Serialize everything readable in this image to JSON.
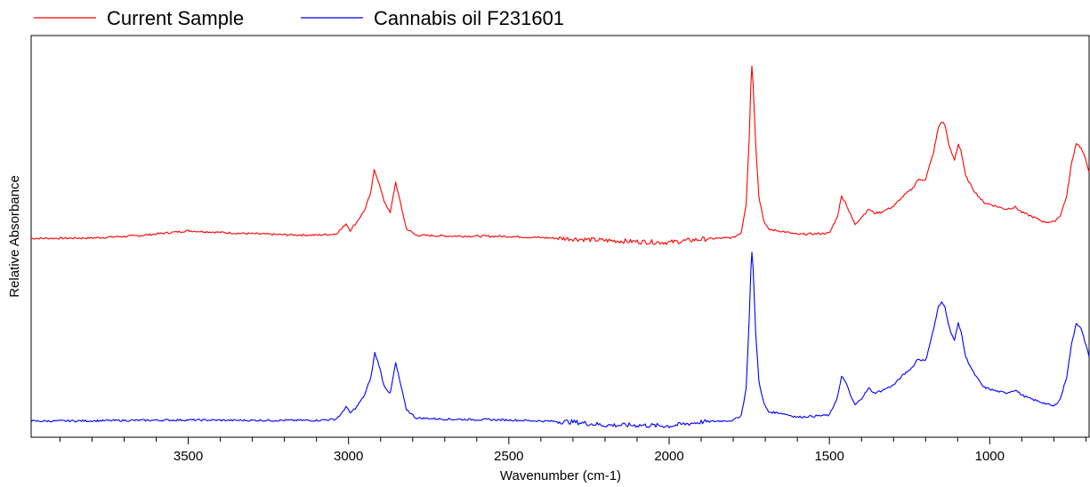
{
  "chart_data": {
    "type": "line",
    "title": "",
    "xlabel": "Wavenumber (cm-1)",
    "ylabel": "Relative Absorbance",
    "x_reversed": true,
    "xlim": [
      3990,
      690
    ],
    "ylim": [
      0,
      1
    ],
    "y_ticks_shown": false,
    "grid": false,
    "legend_position": "top-left, above plot",
    "x_ticks": [
      3500,
      3000,
      2500,
      2000,
      1500,
      1000
    ],
    "x_tick_labels": [
      "3500",
      "3000",
      "2500",
      "2000",
      "1500",
      "1000"
    ],
    "series": [
      {
        "name": "Current Sample",
        "color": "#ff0000",
        "points": [
          [
            3990,
            0.495
          ],
          [
            3800,
            0.496
          ],
          [
            3650,
            0.502
          ],
          [
            3500,
            0.514
          ],
          [
            3350,
            0.508
          ],
          [
            3200,
            0.504
          ],
          [
            3100,
            0.503
          ],
          [
            3040,
            0.506
          ],
          [
            3020,
            0.52
          ],
          [
            3008,
            0.532
          ],
          [
            2995,
            0.515
          ],
          [
            2975,
            0.535
          ],
          [
            2950,
            0.565
          ],
          [
            2930,
            0.61
          ],
          [
            2920,
            0.667
          ],
          [
            2908,
            0.64
          ],
          [
            2890,
            0.59
          ],
          [
            2870,
            0.558
          ],
          [
            2853,
            0.635
          ],
          [
            2840,
            0.59
          ],
          [
            2820,
            0.52
          ],
          [
            2790,
            0.503
          ],
          [
            2700,
            0.501
          ],
          [
            2500,
            0.5
          ],
          [
            2300,
            0.494
          ],
          [
            2200,
            0.49
          ],
          [
            2100,
            0.487
          ],
          [
            2000,
            0.485
          ],
          [
            1900,
            0.493
          ],
          [
            1800,
            0.497
          ],
          [
            1775,
            0.51
          ],
          [
            1760,
            0.58
          ],
          [
            1750,
            0.75
          ],
          [
            1745,
            0.88
          ],
          [
            1742,
            0.925
          ],
          [
            1738,
            0.88
          ],
          [
            1730,
            0.73
          ],
          [
            1720,
            0.6
          ],
          [
            1705,
            0.54
          ],
          [
            1690,
            0.517
          ],
          [
            1650,
            0.513
          ],
          [
            1600,
            0.505
          ],
          [
            1500,
            0.508
          ],
          [
            1475,
            0.55
          ],
          [
            1462,
            0.6
          ],
          [
            1450,
            0.585
          ],
          [
            1435,
            0.555
          ],
          [
            1420,
            0.53
          ],
          [
            1400,
            0.548
          ],
          [
            1377,
            0.568
          ],
          [
            1360,
            0.558
          ],
          [
            1340,
            0.56
          ],
          [
            1300,
            0.575
          ],
          [
            1270,
            0.6
          ],
          [
            1240,
            0.62
          ],
          [
            1225,
            0.64
          ],
          [
            1200,
            0.642
          ],
          [
            1175,
            0.71
          ],
          [
            1160,
            0.772
          ],
          [
            1150,
            0.786
          ],
          [
            1140,
            0.778
          ],
          [
            1125,
            0.72
          ],
          [
            1110,
            0.69
          ],
          [
            1098,
            0.73
          ],
          [
            1090,
            0.715
          ],
          [
            1075,
            0.65
          ],
          [
            1050,
            0.615
          ],
          [
            1020,
            0.585
          ],
          [
            980,
            0.575
          ],
          [
            950,
            0.568
          ],
          [
            920,
            0.573
          ],
          [
            900,
            0.56
          ],
          [
            870,
            0.55
          ],
          [
            830,
            0.536
          ],
          [
            800,
            0.536
          ],
          [
            780,
            0.552
          ],
          [
            760,
            0.6
          ],
          [
            745,
            0.68
          ],
          [
            730,
            0.733
          ],
          [
            715,
            0.72
          ],
          [
            700,
            0.69
          ],
          [
            690,
            0.66
          ]
        ]
      },
      {
        "name": "Cannabis oil F231601",
        "color": "#0000ff",
        "points": [
          [
            3990,
            0.04
          ],
          [
            3800,
            0.041
          ],
          [
            3650,
            0.042
          ],
          [
            3500,
            0.043
          ],
          [
            3350,
            0.042
          ],
          [
            3200,
            0.042
          ],
          [
            3100,
            0.042
          ],
          [
            3040,
            0.045
          ],
          [
            3020,
            0.06
          ],
          [
            3008,
            0.077
          ],
          [
            2995,
            0.06
          ],
          [
            2975,
            0.075
          ],
          [
            2950,
            0.105
          ],
          [
            2930,
            0.15
          ],
          [
            2918,
            0.21
          ],
          [
            2905,
            0.18
          ],
          [
            2890,
            0.13
          ],
          [
            2870,
            0.108
          ],
          [
            2853,
            0.185
          ],
          [
            2840,
            0.14
          ],
          [
            2820,
            0.07
          ],
          [
            2790,
            0.048
          ],
          [
            2700,
            0.045
          ],
          [
            2500,
            0.043
          ],
          [
            2300,
            0.038
          ],
          [
            2200,
            0.03
          ],
          [
            2100,
            0.03
          ],
          [
            2000,
            0.028
          ],
          [
            1900,
            0.038
          ],
          [
            1800,
            0.042
          ],
          [
            1775,
            0.055
          ],
          [
            1760,
            0.12
          ],
          [
            1750,
            0.3
          ],
          [
            1745,
            0.42
          ],
          [
            1742,
            0.46
          ],
          [
            1738,
            0.42
          ],
          [
            1730,
            0.26
          ],
          [
            1720,
            0.14
          ],
          [
            1705,
            0.085
          ],
          [
            1690,
            0.063
          ],
          [
            1650,
            0.06
          ],
          [
            1600,
            0.05
          ],
          [
            1500,
            0.055
          ],
          [
            1475,
            0.1
          ],
          [
            1462,
            0.15
          ],
          [
            1450,
            0.14
          ],
          [
            1435,
            0.105
          ],
          [
            1420,
            0.08
          ],
          [
            1400,
            0.097
          ],
          [
            1377,
            0.122
          ],
          [
            1360,
            0.11
          ],
          [
            1340,
            0.115
          ],
          [
            1300,
            0.13
          ],
          [
            1270,
            0.155
          ],
          [
            1240,
            0.175
          ],
          [
            1225,
            0.195
          ],
          [
            1200,
            0.19
          ],
          [
            1175,
            0.27
          ],
          [
            1160,
            0.325
          ],
          [
            1150,
            0.335
          ],
          [
            1140,
            0.325
          ],
          [
            1125,
            0.27
          ],
          [
            1110,
            0.24
          ],
          [
            1098,
            0.285
          ],
          [
            1090,
            0.265
          ],
          [
            1075,
            0.2
          ],
          [
            1050,
            0.16
          ],
          [
            1020,
            0.125
          ],
          [
            980,
            0.115
          ],
          [
            950,
            0.11
          ],
          [
            920,
            0.118
          ],
          [
            900,
            0.105
          ],
          [
            870,
            0.095
          ],
          [
            830,
            0.085
          ],
          [
            800,
            0.077
          ],
          [
            780,
            0.095
          ],
          [
            760,
            0.15
          ],
          [
            745,
            0.23
          ],
          [
            730,
            0.285
          ],
          [
            715,
            0.27
          ],
          [
            700,
            0.23
          ],
          [
            690,
            0.2
          ]
        ]
      }
    ]
  }
}
